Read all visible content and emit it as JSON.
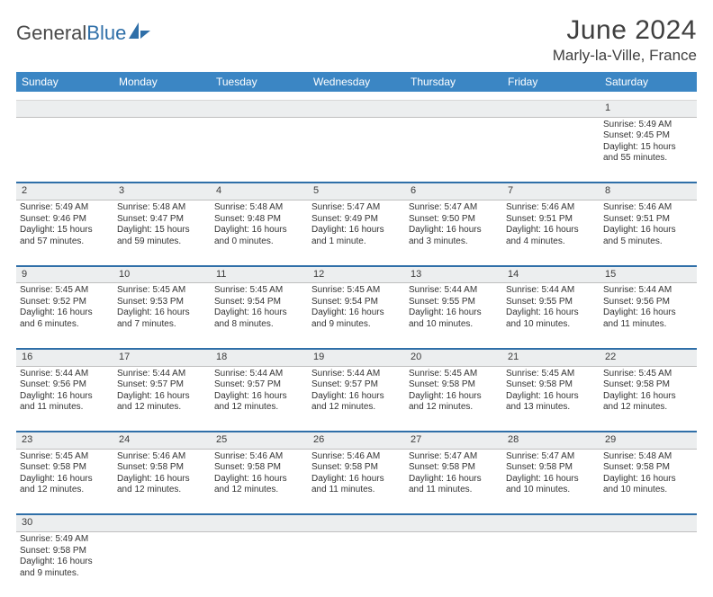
{
  "brand": {
    "part1": "General",
    "part2": "Blue"
  },
  "title": "June 2024",
  "location": "Marly-la-Ville, France",
  "colors": {
    "header_bg": "#3b86c4",
    "header_text": "#ffffff",
    "daynum_bg": "#eceeef",
    "week_border": "#2f6fa8",
    "text": "#333333",
    "title_color": "#3f3f3f"
  },
  "day_headers": [
    "Sunday",
    "Monday",
    "Tuesday",
    "Wednesday",
    "Thursday",
    "Friday",
    "Saturday"
  ],
  "weeks": [
    {
      "nums": [
        "",
        "",
        "",
        "",
        "",
        "",
        "1"
      ],
      "cells": [
        null,
        null,
        null,
        null,
        null,
        null,
        {
          "sunrise": "Sunrise: 5:49 AM",
          "sunset": "Sunset: 9:45 PM",
          "day1": "Daylight: 15 hours",
          "day2": "and 55 minutes."
        }
      ]
    },
    {
      "nums": [
        "2",
        "3",
        "4",
        "5",
        "6",
        "7",
        "8"
      ],
      "cells": [
        {
          "sunrise": "Sunrise: 5:49 AM",
          "sunset": "Sunset: 9:46 PM",
          "day1": "Daylight: 15 hours",
          "day2": "and 57 minutes."
        },
        {
          "sunrise": "Sunrise: 5:48 AM",
          "sunset": "Sunset: 9:47 PM",
          "day1": "Daylight: 15 hours",
          "day2": "and 59 minutes."
        },
        {
          "sunrise": "Sunrise: 5:48 AM",
          "sunset": "Sunset: 9:48 PM",
          "day1": "Daylight: 16 hours",
          "day2": "and 0 minutes."
        },
        {
          "sunrise": "Sunrise: 5:47 AM",
          "sunset": "Sunset: 9:49 PM",
          "day1": "Daylight: 16 hours",
          "day2": "and 1 minute."
        },
        {
          "sunrise": "Sunrise: 5:47 AM",
          "sunset": "Sunset: 9:50 PM",
          "day1": "Daylight: 16 hours",
          "day2": "and 3 minutes."
        },
        {
          "sunrise": "Sunrise: 5:46 AM",
          "sunset": "Sunset: 9:51 PM",
          "day1": "Daylight: 16 hours",
          "day2": "and 4 minutes."
        },
        {
          "sunrise": "Sunrise: 5:46 AM",
          "sunset": "Sunset: 9:51 PM",
          "day1": "Daylight: 16 hours",
          "day2": "and 5 minutes."
        }
      ]
    },
    {
      "nums": [
        "9",
        "10",
        "11",
        "12",
        "13",
        "14",
        "15"
      ],
      "cells": [
        {
          "sunrise": "Sunrise: 5:45 AM",
          "sunset": "Sunset: 9:52 PM",
          "day1": "Daylight: 16 hours",
          "day2": "and 6 minutes."
        },
        {
          "sunrise": "Sunrise: 5:45 AM",
          "sunset": "Sunset: 9:53 PM",
          "day1": "Daylight: 16 hours",
          "day2": "and 7 minutes."
        },
        {
          "sunrise": "Sunrise: 5:45 AM",
          "sunset": "Sunset: 9:54 PM",
          "day1": "Daylight: 16 hours",
          "day2": "and 8 minutes."
        },
        {
          "sunrise": "Sunrise: 5:45 AM",
          "sunset": "Sunset: 9:54 PM",
          "day1": "Daylight: 16 hours",
          "day2": "and 9 minutes."
        },
        {
          "sunrise": "Sunrise: 5:44 AM",
          "sunset": "Sunset: 9:55 PM",
          "day1": "Daylight: 16 hours",
          "day2": "and 10 minutes."
        },
        {
          "sunrise": "Sunrise: 5:44 AM",
          "sunset": "Sunset: 9:55 PM",
          "day1": "Daylight: 16 hours",
          "day2": "and 10 minutes."
        },
        {
          "sunrise": "Sunrise: 5:44 AM",
          "sunset": "Sunset: 9:56 PM",
          "day1": "Daylight: 16 hours",
          "day2": "and 11 minutes."
        }
      ]
    },
    {
      "nums": [
        "16",
        "17",
        "18",
        "19",
        "20",
        "21",
        "22"
      ],
      "cells": [
        {
          "sunrise": "Sunrise: 5:44 AM",
          "sunset": "Sunset: 9:56 PM",
          "day1": "Daylight: 16 hours",
          "day2": "and 11 minutes."
        },
        {
          "sunrise": "Sunrise: 5:44 AM",
          "sunset": "Sunset: 9:57 PM",
          "day1": "Daylight: 16 hours",
          "day2": "and 12 minutes."
        },
        {
          "sunrise": "Sunrise: 5:44 AM",
          "sunset": "Sunset: 9:57 PM",
          "day1": "Daylight: 16 hours",
          "day2": "and 12 minutes."
        },
        {
          "sunrise": "Sunrise: 5:44 AM",
          "sunset": "Sunset: 9:57 PM",
          "day1": "Daylight: 16 hours",
          "day2": "and 12 minutes."
        },
        {
          "sunrise": "Sunrise: 5:45 AM",
          "sunset": "Sunset: 9:58 PM",
          "day1": "Daylight: 16 hours",
          "day2": "and 12 minutes."
        },
        {
          "sunrise": "Sunrise: 5:45 AM",
          "sunset": "Sunset: 9:58 PM",
          "day1": "Daylight: 16 hours",
          "day2": "and 13 minutes."
        },
        {
          "sunrise": "Sunrise: 5:45 AM",
          "sunset": "Sunset: 9:58 PM",
          "day1": "Daylight: 16 hours",
          "day2": "and 12 minutes."
        }
      ]
    },
    {
      "nums": [
        "23",
        "24",
        "25",
        "26",
        "27",
        "28",
        "29"
      ],
      "cells": [
        {
          "sunrise": "Sunrise: 5:45 AM",
          "sunset": "Sunset: 9:58 PM",
          "day1": "Daylight: 16 hours",
          "day2": "and 12 minutes."
        },
        {
          "sunrise": "Sunrise: 5:46 AM",
          "sunset": "Sunset: 9:58 PM",
          "day1": "Daylight: 16 hours",
          "day2": "and 12 minutes."
        },
        {
          "sunrise": "Sunrise: 5:46 AM",
          "sunset": "Sunset: 9:58 PM",
          "day1": "Daylight: 16 hours",
          "day2": "and 12 minutes."
        },
        {
          "sunrise": "Sunrise: 5:46 AM",
          "sunset": "Sunset: 9:58 PM",
          "day1": "Daylight: 16 hours",
          "day2": "and 11 minutes."
        },
        {
          "sunrise": "Sunrise: 5:47 AM",
          "sunset": "Sunset: 9:58 PM",
          "day1": "Daylight: 16 hours",
          "day2": "and 11 minutes."
        },
        {
          "sunrise": "Sunrise: 5:47 AM",
          "sunset": "Sunset: 9:58 PM",
          "day1": "Daylight: 16 hours",
          "day2": "and 10 minutes."
        },
        {
          "sunrise": "Sunrise: 5:48 AM",
          "sunset": "Sunset: 9:58 PM",
          "day1": "Daylight: 16 hours",
          "day2": "and 10 minutes."
        }
      ]
    },
    {
      "nums": [
        "30",
        "",
        "",
        "",
        "",
        "",
        ""
      ],
      "cells": [
        {
          "sunrise": "Sunrise: 5:49 AM",
          "sunset": "Sunset: 9:58 PM",
          "day1": "Daylight: 16 hours",
          "day2": "and 9 minutes."
        },
        null,
        null,
        null,
        null,
        null,
        null
      ]
    }
  ]
}
